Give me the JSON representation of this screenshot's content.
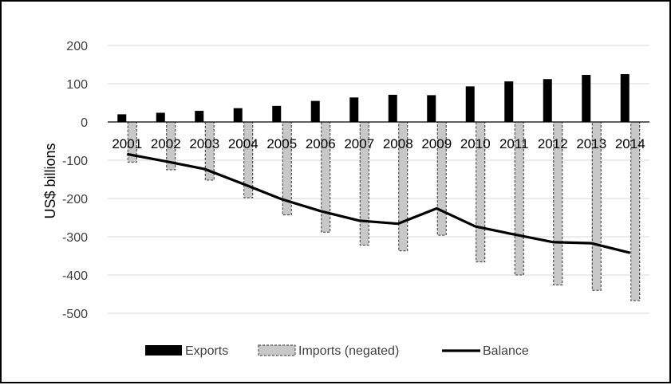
{
  "chart_data": {
    "type": "bar",
    "title": "",
    "xlabel": "",
    "ylabel": "US$ billions",
    "ylim": [
      -500,
      200
    ],
    "yticks": [
      200,
      100,
      0,
      -100,
      -200,
      -300,
      -400,
      -500
    ],
    "grid": true,
    "legend_position": "bottom",
    "categories": [
      "2001",
      "2002",
      "2003",
      "2004",
      "2005",
      "2006",
      "2007",
      "2008",
      "2009",
      "2010",
      "2011",
      "2012",
      "2013",
      "2014"
    ],
    "series": [
      {
        "name": "Exports",
        "kind": "bar",
        "style": "solid",
        "color": "#000000",
        "values": [
          20,
          24,
          29,
          36,
          42,
          55,
          64,
          71,
          70,
          93,
          106,
          112,
          123,
          125
        ]
      },
      {
        "name": "Imports (negated)",
        "kind": "bar",
        "style": "dashed",
        "color": "#c8c8c8",
        "values": [
          -105,
          -125,
          -152,
          -198,
          -243,
          -288,
          -322,
          -337,
          -296,
          -366,
          -400,
          -426,
          -440,
          -467
        ]
      },
      {
        "name": "Balance",
        "kind": "line",
        "color": "#000000",
        "values": [
          -84,
          -103,
          -123,
          -162,
          -202,
          -233,
          -258,
          -266,
          -226,
          -273,
          -294,
          -314,
          -317,
          -342
        ]
      }
    ]
  }
}
